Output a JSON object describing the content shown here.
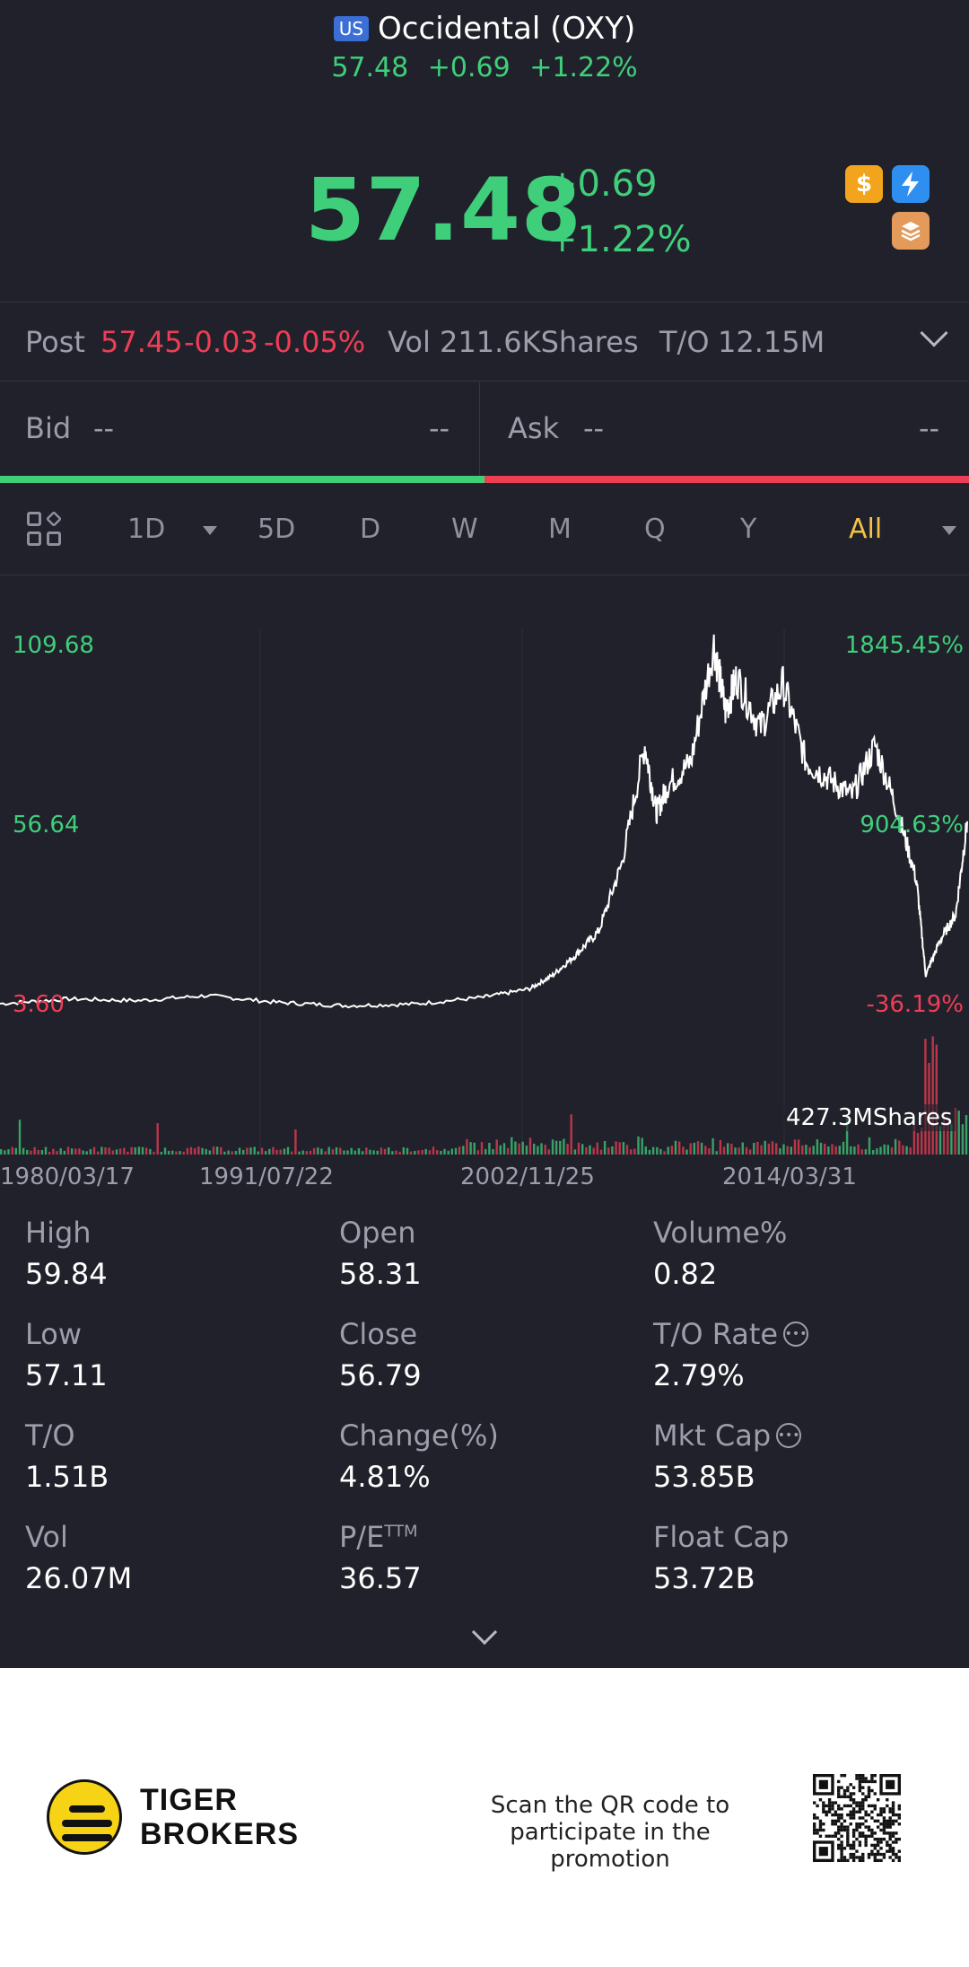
{
  "header": {
    "market_badge": "US",
    "title": "Occidental (OXY)",
    "price": "57.48",
    "change": "+0.69",
    "change_pct": "+1.22%"
  },
  "quote": {
    "price": "57.48",
    "change": "+0.69",
    "change_pct": "+1.22%",
    "icons": [
      "dollar-icon",
      "lightning-icon",
      "layers-icon"
    ]
  },
  "post": {
    "label": "Post",
    "price": "57.45",
    "change": "-0.03",
    "change_pct": "-0.05%",
    "vol_label": "Vol",
    "vol_value": "211.6KShares",
    "to_label": "T/O",
    "to_value": "12.15M"
  },
  "bidask": {
    "bid_label": "Bid",
    "bid_price": "--",
    "bid_size": "--",
    "ask_label": "Ask",
    "ask_price": "--",
    "ask_size": "--"
  },
  "periods": {
    "items": [
      "1D",
      "5D",
      "D",
      "W",
      "M",
      "Q",
      "Y",
      "All"
    ],
    "active": "All"
  },
  "chart_labels": {
    "y_left_top": "109.68",
    "y_left_mid": "56.64",
    "y_left_bottom": "3.60",
    "y_right_top": "1845.45%",
    "y_right_mid": "904.63%",
    "y_right_bottom": "-36.19%",
    "volume_max": "427.3MShares",
    "x_ticks": [
      "1980/03/17",
      "1991/07/22",
      "2002/11/25",
      "2014/03/31"
    ]
  },
  "chart_data": {
    "type": "line",
    "x_ticks": [
      "1980/03/17",
      "1991/07/22",
      "2002/11/25",
      "2014/03/31"
    ],
    "ylim": [
      3.6,
      109.68
    ],
    "series": [
      {
        "x": [
          "1980",
          "1983",
          "1986",
          "1989",
          "1992",
          "1995",
          "1998",
          "2001",
          "2003",
          "2004",
          "2005",
          "2006",
          "2007",
          "2008",
          "2008.5",
          "2009",
          "2010",
          "2011",
          "2011.5",
          "2012",
          "2013",
          "2014",
          "2015",
          "2016",
          "2017",
          "2018",
          "2019",
          "2019.8",
          "2020.2",
          "2020.8",
          "2021.5",
          "2022"
        ],
        "values": [
          3.6,
          5,
          4.5,
          6,
          4,
          3,
          3.5,
          5.5,
          8,
          12,
          18,
          25,
          45,
          80,
          60,
          68,
          75,
          109.68,
          90,
          100,
          85,
          98,
          75,
          70,
          65,
          80,
          60,
          40,
          12,
          22,
          30,
          57.48
        ]
      }
    ]
  },
  "stats": [
    {
      "label": "High",
      "value": "59.84",
      "info": false
    },
    {
      "label": "Open",
      "value": "58.31",
      "info": false
    },
    {
      "label": "Volume%",
      "value": "0.82",
      "info": false
    },
    {
      "label": "Low",
      "value": "57.11",
      "info": false
    },
    {
      "label": "Close",
      "value": "56.79",
      "info": false
    },
    {
      "label": "T/O Rate",
      "value": "2.79%",
      "info": true
    },
    {
      "label": "T/O",
      "value": "1.51B",
      "info": false
    },
    {
      "label": "Change(%)",
      "value": "4.81%",
      "info": false
    },
    {
      "label": "Mkt Cap",
      "value": "53.85B",
      "info": true
    },
    {
      "label": "Vol",
      "value": "26.07M",
      "info": false
    },
    {
      "label": "P/E",
      "label_sup": "TTM",
      "value": "36.57",
      "info": false
    },
    {
      "label": "Float Cap",
      "value": "53.72B",
      "info": false
    }
  ],
  "footer": {
    "brand_line1": "TIGER",
    "brand_line2": "BROKERS",
    "scan_line1": "Scan the QR code to",
    "scan_line2": "participate in the promotion"
  },
  "colors": {
    "background": "#21212b",
    "up": "#3fcf7b",
    "down": "#ee3e55",
    "active_period": "#f5c244"
  }
}
